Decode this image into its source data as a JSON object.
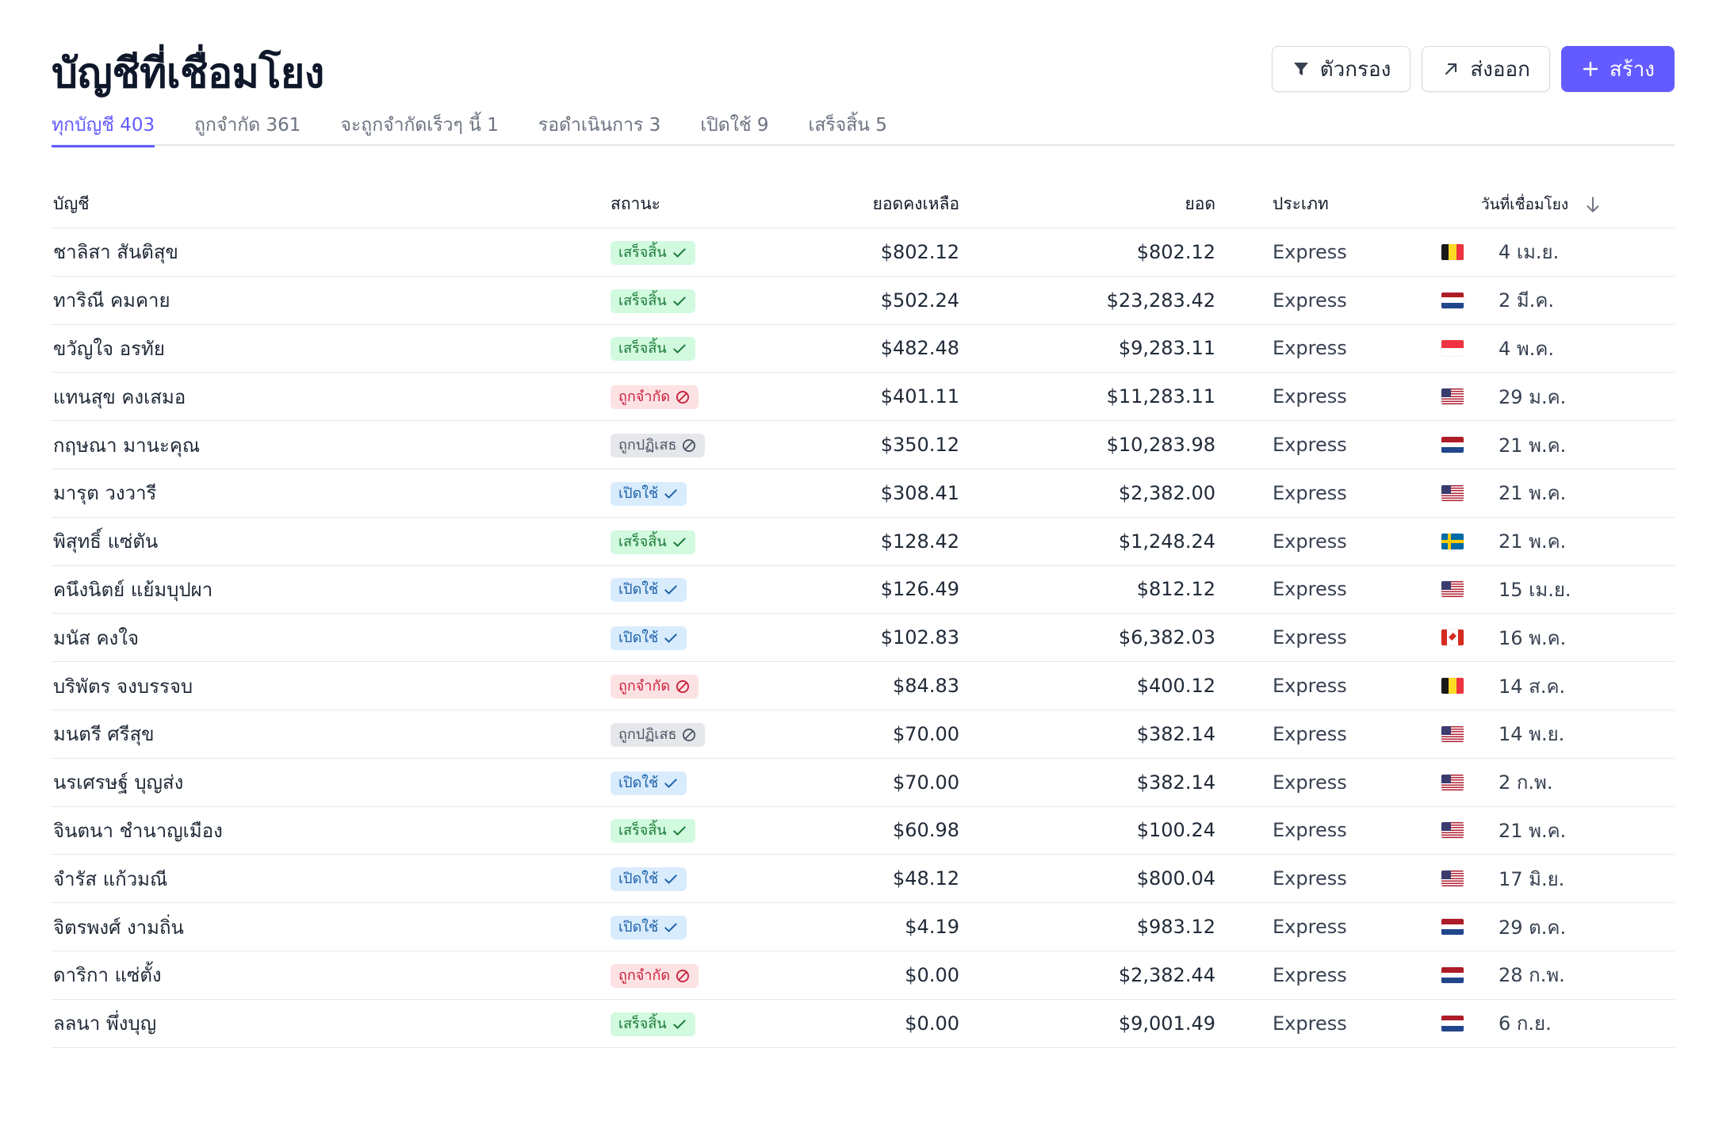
{
  "page": {
    "title": "บัญชีที่เชื่อมโยง"
  },
  "actions": {
    "filter_label": "ตัวกรอง",
    "export_label": "ส่งออก",
    "create_label": "สร้าง"
  },
  "tabs": [
    {
      "label": "ทุกบัญชี 403",
      "active": true
    },
    {
      "label": "ถูกจำกัด 361",
      "active": false
    },
    {
      "label": "จะถูกจำกัดเร็วๆ นี้ 1",
      "active": false
    },
    {
      "label": "รอดำเนินการ 3",
      "active": false
    },
    {
      "label": "เปิดใช้ 9",
      "active": false
    },
    {
      "label": "เสร็จสิ้น 5",
      "active": false
    }
  ],
  "table": {
    "columns": {
      "account": "บัญชี",
      "status": "สถานะ",
      "balance": "ยอดคงเหลือ",
      "amount": "ยอด",
      "type": "ประเภท",
      "linked_date": "วันที่เชื่อมโยง"
    },
    "rows": [
      {
        "name": "ชาลิสา สันติสุข",
        "status": "เสร็จสิ้น",
        "status_kind": "done",
        "balance": "$802.12",
        "amount": "$802.12",
        "type": "Express",
        "flag": "be",
        "date": "4 เม.ย."
      },
      {
        "name": "ทาริณี คมคาย",
        "status": "เสร็จสิ้น",
        "status_kind": "done",
        "balance": "$502.24",
        "amount": "$23,283.42",
        "type": "Express",
        "flag": "nl",
        "date": "2 มี.ค."
      },
      {
        "name": "ขวัญใจ อรทัย",
        "status": "เสร็จสิ้น",
        "status_kind": "done",
        "balance": "$482.48",
        "amount": "$9,283.11",
        "type": "Express",
        "flag": "sg",
        "date": "4 พ.ค."
      },
      {
        "name": "แทนสุข คงเสมอ",
        "status": "ถูกจำกัด",
        "status_kind": "limited",
        "balance": "$401.11",
        "amount": "$11,283.11",
        "type": "Express",
        "flag": "us",
        "date": "29 ม.ค."
      },
      {
        "name": "กฤษณา มานะคุณ",
        "status": "ถูกปฏิเสธ",
        "status_kind": "rejected",
        "balance": "$350.12",
        "amount": "$10,283.98",
        "type": "Express",
        "flag": "nl",
        "date": "21 พ.ค."
      },
      {
        "name": "มารุต วงวารี",
        "status": "เปิดใช้",
        "status_kind": "active",
        "balance": "$308.41",
        "amount": "$2,382.00",
        "type": "Express",
        "flag": "us",
        "date": "21 พ.ค."
      },
      {
        "name": "พิสุทธิ์ แซ่ตัน",
        "status": "เสร็จสิ้น",
        "status_kind": "done",
        "balance": "$128.42",
        "amount": "$1,248.24",
        "type": "Express",
        "flag": "se",
        "date": "21 พ.ค."
      },
      {
        "name": "คนึงนิตย์ แย้มบุปผา",
        "status": "เปิดใช้",
        "status_kind": "active",
        "balance": "$126.49",
        "amount": "$812.12",
        "type": "Express",
        "flag": "us",
        "date": "15 เม.ย."
      },
      {
        "name": "มนัส คงใจ",
        "status": "เปิดใช้",
        "status_kind": "active",
        "balance": "$102.83",
        "amount": "$6,382.03",
        "type": "Express",
        "flag": "ca",
        "date": "16 พ.ค."
      },
      {
        "name": "บริพัตร จงบรรจบ",
        "status": "ถูกจำกัด",
        "status_kind": "limited",
        "balance": "$84.83",
        "amount": "$400.12",
        "type": "Express",
        "flag": "be",
        "date": "14 ส.ค."
      },
      {
        "name": "มนตรี ศรีสุข",
        "status": "ถูกปฏิเสธ",
        "status_kind": "rejected",
        "balance": "$70.00",
        "amount": "$382.14",
        "type": "Express",
        "flag": "us",
        "date": "14 พ.ย."
      },
      {
        "name": "นรเศรษฐ์ บุญส่ง",
        "status": "เปิดใช้",
        "status_kind": "active",
        "balance": "$70.00",
        "amount": "$382.14",
        "type": "Express",
        "flag": "us",
        "date": "2 ก.พ."
      },
      {
        "name": "จินตนา ชำนาญเมือง",
        "status": "เสร็จสิ้น",
        "status_kind": "done",
        "balance": "$60.98",
        "amount": "$100.24",
        "type": "Express",
        "flag": "us",
        "date": "21 พ.ค."
      },
      {
        "name": "จำรัส แก้วมณี",
        "status": "เปิดใช้",
        "status_kind": "active",
        "balance": "$48.12",
        "amount": "$800.04",
        "type": "Express",
        "flag": "us",
        "date": "17 มิ.ย."
      },
      {
        "name": "จิตรพงศ์ งามถิ่น",
        "status": "เปิดใช้",
        "status_kind": "active",
        "balance": "$4.19",
        "amount": "$983.12",
        "type": "Express",
        "flag": "nl",
        "date": "29 ต.ค."
      },
      {
        "name": "ดาริกา แซ่ตั้ง",
        "status": "ถูกจำกัด",
        "status_kind": "limited",
        "balance": "$0.00",
        "amount": "$2,382.44",
        "type": "Express",
        "flag": "nl",
        "date": "28 ก.พ."
      },
      {
        "name": "ลลนา พึ่งบุญ",
        "status": "เสร็จสิ้น",
        "status_kind": "done",
        "balance": "$0.00",
        "amount": "$9,001.49",
        "type": "Express",
        "flag": "nl",
        "date": "6 ก.ย."
      }
    ]
  },
  "colors": {
    "accent": "#635bff",
    "done_bg": "#d1fadf",
    "limited_bg": "#fde2e4",
    "rejected_bg": "#e5e7eb",
    "active_bg": "#d8ecfd"
  }
}
